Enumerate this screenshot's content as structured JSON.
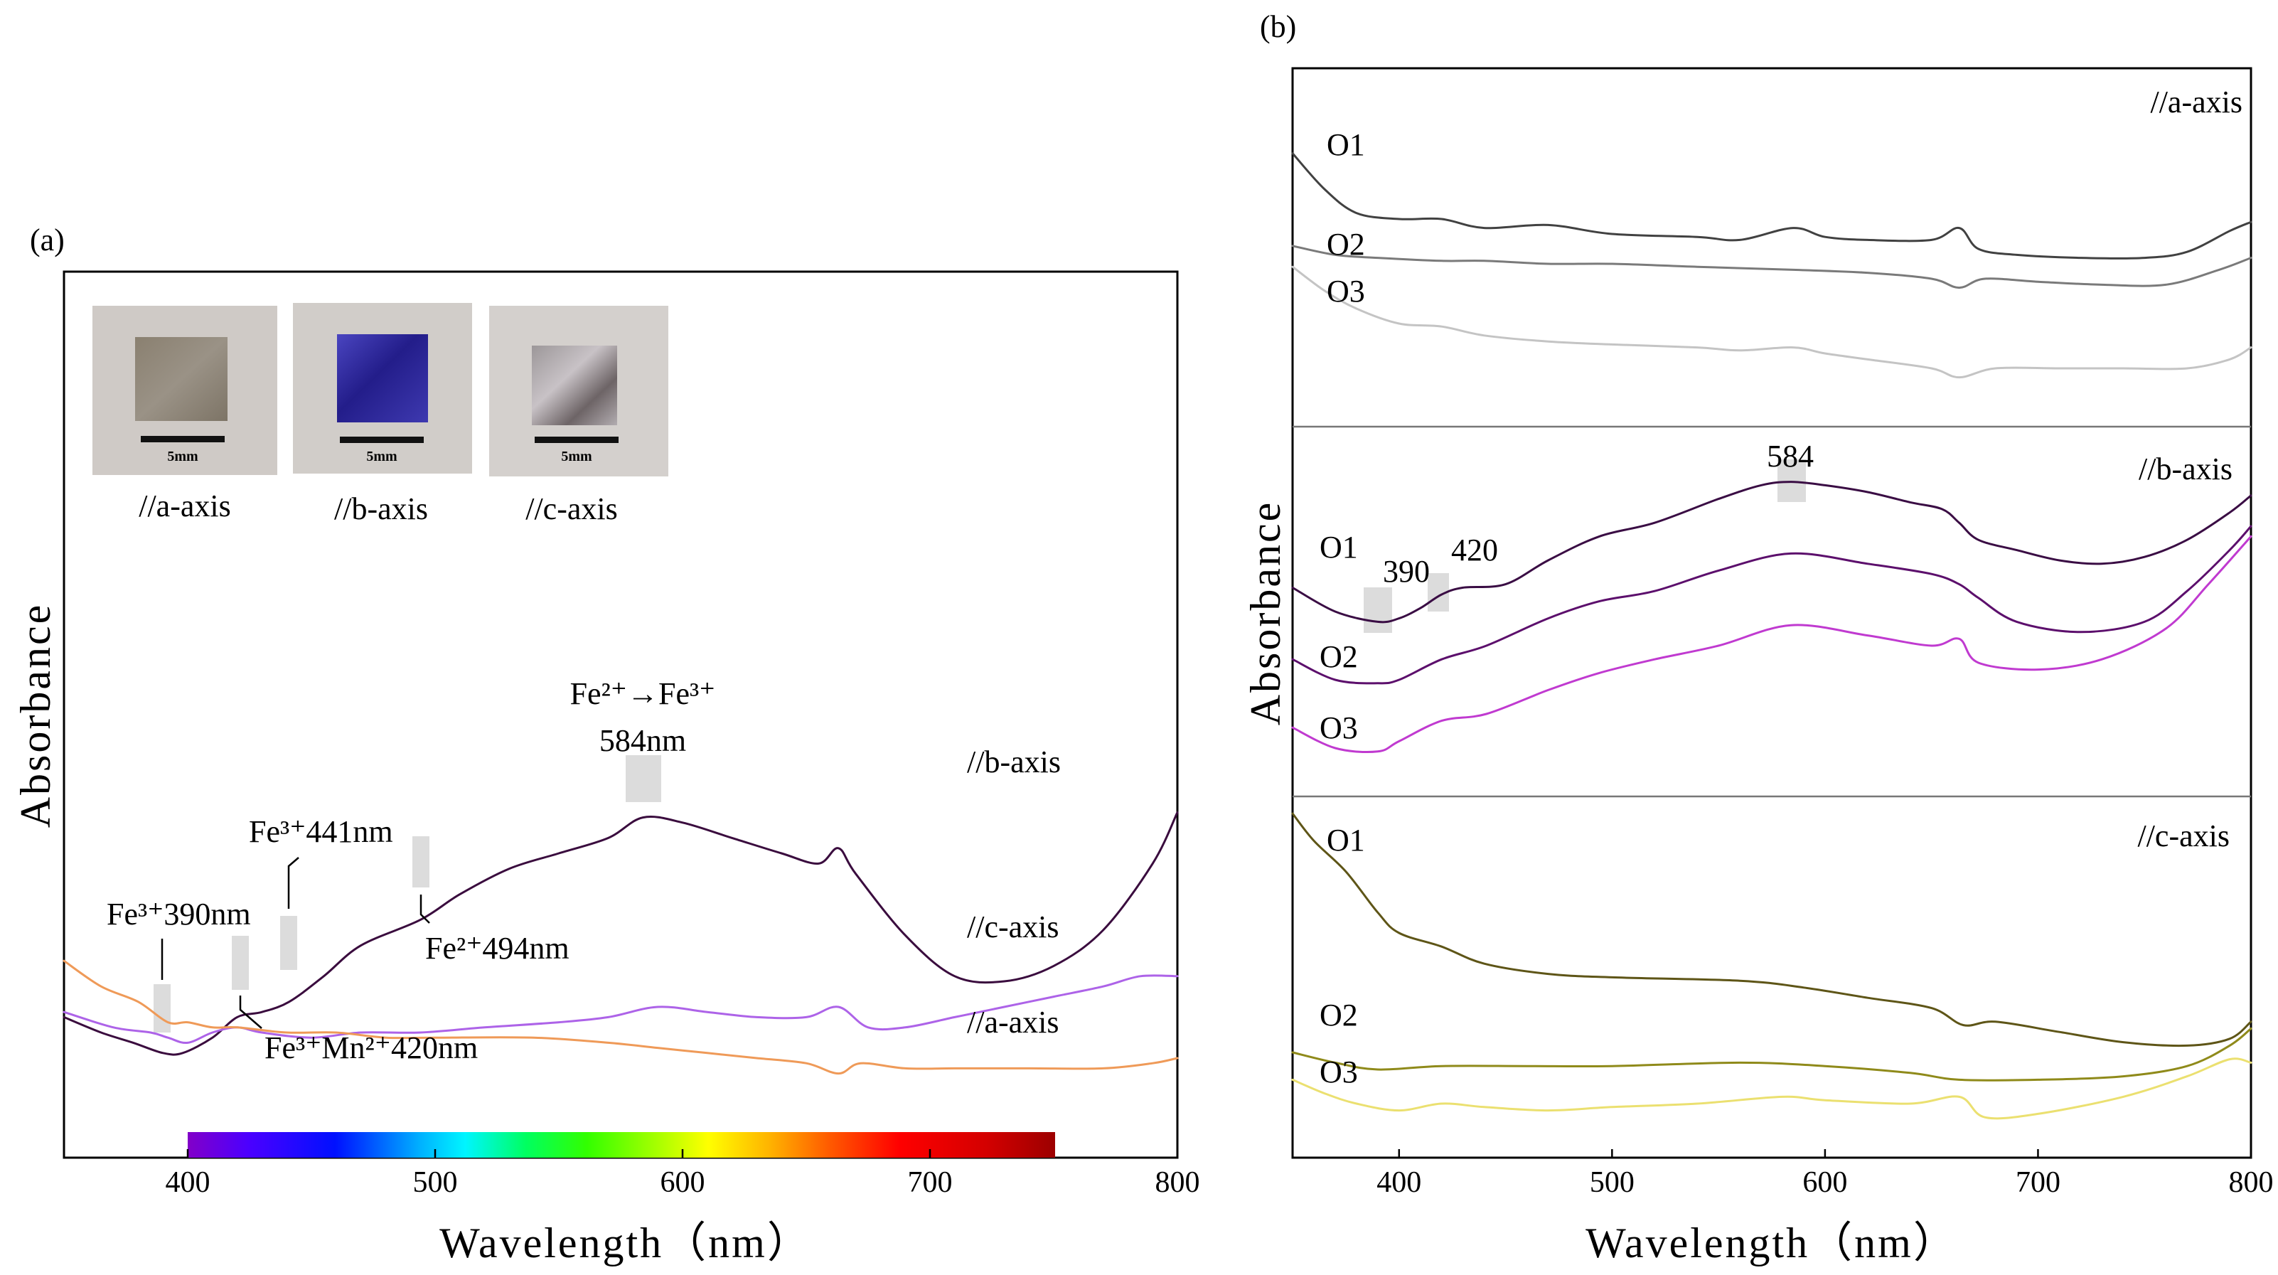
{
  "chart_data": [
    {
      "type": "line",
      "panel_label": "(a)",
      "xlabel": "Wavelength（nm）",
      "ylabel": "Absorbance",
      "xlim": [
        350,
        800
      ],
      "ylim": [
        0,
        1
      ],
      "xticks": [
        "400",
        "500",
        "600",
        "700",
        "800"
      ],
      "yticks": [],
      "spectrum_bar": {
        "range": [
          400,
          750
        ]
      },
      "inset_photos": [
        {
          "caption": "//a-axis",
          "scale_label": "5mm",
          "tint": "#8b8278"
        },
        {
          "caption": "//b-axis",
          "scale_label": "5mm",
          "tint": "#3c37a0"
        },
        {
          "caption": "//c-axis",
          "scale_label": "5mm",
          "tint": "#a49fa3"
        }
      ],
      "annotations": [
        {
          "label": "Fe²⁺→Fe³⁺",
          "x": 584
        },
        {
          "label": "584nm",
          "x": 584
        },
        {
          "label": "Fe³⁺441nm",
          "x": 441
        },
        {
          "label": "Fe³⁺390nm",
          "x": 390
        },
        {
          "label": "Fe²⁺494nm",
          "x": 494
        },
        {
          "label": "Fe³⁺Mn²⁺420nm",
          "x": 420
        }
      ],
      "series": [
        {
          "name": "//b-axis",
          "color": "#3a0c3e",
          "x": [
            350,
            365,
            378,
            390,
            398,
            410,
            420,
            430,
            441,
            455,
            470,
            494,
            510,
            530,
            550,
            570,
            584,
            600,
            620,
            640,
            655,
            663,
            670,
            690,
            710,
            730,
            750,
            770,
            790,
            800
          ],
          "y": [
            0.18,
            0.15,
            0.13,
            0.11,
            0.11,
            0.14,
            0.18,
            0.19,
            0.21,
            0.26,
            0.32,
            0.37,
            0.42,
            0.47,
            0.5,
            0.53,
            0.57,
            0.56,
            0.53,
            0.5,
            0.48,
            0.51,
            0.46,
            0.34,
            0.26,
            0.25,
            0.28,
            0.35,
            0.48,
            0.58
          ]
        },
        {
          "name": "//c-axis",
          "color": "#ad63e8",
          "x": [
            350,
            370,
            385,
            392,
            400,
            410,
            420,
            430,
            450,
            470,
            494,
            520,
            550,
            570,
            590,
            610,
            630,
            650,
            663,
            675,
            690,
            710,
            730,
            750,
            770,
            785,
            800
          ],
          "y": [
            0.19,
            0.16,
            0.15,
            0.14,
            0.13,
            0.15,
            0.16,
            0.15,
            0.14,
            0.15,
            0.15,
            0.16,
            0.17,
            0.18,
            0.2,
            0.19,
            0.18,
            0.18,
            0.2,
            0.16,
            0.16,
            0.18,
            0.2,
            0.22,
            0.24,
            0.26,
            0.26
          ]
        },
        {
          "name": "//a-axis",
          "color": "#ef9a58",
          "x": [
            350,
            365,
            380,
            392,
            400,
            410,
            420,
            440,
            460,
            480,
            500,
            540,
            570,
            590,
            610,
            630,
            650,
            663,
            672,
            690,
            710,
            740,
            770,
            790,
            800
          ],
          "y": [
            0.29,
            0.24,
            0.21,
            0.17,
            0.17,
            0.16,
            0.16,
            0.15,
            0.15,
            0.14,
            0.14,
            0.14,
            0.13,
            0.12,
            0.11,
            0.1,
            0.09,
            0.07,
            0.09,
            0.08,
            0.08,
            0.08,
            0.08,
            0.09,
            0.1
          ]
        }
      ]
    },
    {
      "type": "line",
      "panel_label": "(b)",
      "xlabel": "Wavelength（nm）",
      "ylabel": "Absorbance",
      "xlim": [
        350,
        800
      ],
      "ylim": [
        0,
        1
      ],
      "xticks": [
        "400",
        "500",
        "600",
        "700",
        "800"
      ],
      "yticks": [],
      "subpanels": [
        {
          "title": "//a-axis",
          "peak_labels": [],
          "series": [
            {
              "name": "O1",
              "color": "#414141",
              "x": [
                350,
                365,
                380,
                400,
                420,
                440,
                470,
                500,
                540,
                560,
                585,
                600,
                620,
                650,
                663,
                672,
                690,
                720,
                750,
                770,
                790,
                800
              ],
              "y": [
                0.82,
                0.7,
                0.62,
                0.6,
                0.6,
                0.57,
                0.58,
                0.55,
                0.54,
                0.53,
                0.57,
                0.54,
                0.53,
                0.53,
                0.57,
                0.5,
                0.48,
                0.47,
                0.47,
                0.49,
                0.56,
                0.59
              ]
            },
            {
              "name": "O2",
              "color": "#7a7a7a",
              "x": [
                350,
                370,
                390,
                420,
                440,
                470,
                500,
                540,
                585,
                620,
                650,
                663,
                675,
                700,
                730,
                760,
                785,
                800
              ],
              "y": [
                0.51,
                0.48,
                0.47,
                0.46,
                0.46,
                0.45,
                0.45,
                0.44,
                0.43,
                0.42,
                0.4,
                0.37,
                0.4,
                0.39,
                0.38,
                0.38,
                0.43,
                0.47
              ]
            },
            {
              "name": "O3",
              "color": "#c4c4c4",
              "x": [
                350,
                365,
                380,
                400,
                420,
                440,
                470,
                500,
                540,
                560,
                585,
                600,
                620,
                650,
                663,
                680,
                710,
                740,
                770,
                790,
                800
              ],
              "y": [
                0.44,
                0.36,
                0.3,
                0.25,
                0.24,
                0.21,
                0.19,
                0.18,
                0.17,
                0.16,
                0.17,
                0.15,
                0.13,
                0.1,
                0.07,
                0.1,
                0.1,
                0.1,
                0.1,
                0.13,
                0.17
              ]
            }
          ]
        },
        {
          "title": "//b-axis",
          "peak_labels": [
            {
              "label": "584",
              "x": 584
            },
            {
              "label": "390",
              "x": 390
            },
            {
              "label": "420",
              "x": 420
            }
          ],
          "series": [
            {
              "name": "O1",
              "color": "#3a0d44",
              "x": [
                350,
                370,
                390,
                400,
                410,
                420,
                430,
                450,
                470,
                494,
                520,
                550,
                570,
                584,
                600,
                620,
                640,
                655,
                663,
                672,
                690,
                710,
                730,
                750,
                770,
                790,
                800
              ],
              "y": [
                0.57,
                0.5,
                0.47,
                0.48,
                0.51,
                0.55,
                0.57,
                0.58,
                0.65,
                0.72,
                0.76,
                0.83,
                0.87,
                0.88,
                0.87,
                0.85,
                0.82,
                0.8,
                0.76,
                0.71,
                0.68,
                0.65,
                0.64,
                0.66,
                0.71,
                0.79,
                0.84
              ]
            },
            {
              "name": "O2",
              "color": "#5c0f6c",
              "x": [
                350,
                370,
                390,
                400,
                420,
                441,
                470,
                494,
                520,
                550,
                584,
                620,
                650,
                663,
                672,
                690,
                720,
                750,
                770,
                790,
                800
              ],
              "y": [
                0.36,
                0.3,
                0.29,
                0.3,
                0.36,
                0.4,
                0.48,
                0.53,
                0.56,
                0.62,
                0.67,
                0.64,
                0.61,
                0.58,
                0.54,
                0.47,
                0.44,
                0.47,
                0.56,
                0.68,
                0.75
              ]
            },
            {
              "name": "O3",
              "color": "#c03ad0",
              "x": [
                350,
                370,
                390,
                400,
                420,
                441,
                470,
                494,
                520,
                550,
                584,
                620,
                650,
                663,
                672,
                700,
                730,
                760,
                780,
                800
              ],
              "y": [
                0.16,
                0.1,
                0.09,
                0.12,
                0.18,
                0.2,
                0.27,
                0.32,
                0.36,
                0.4,
                0.46,
                0.43,
                0.4,
                0.42,
                0.35,
                0.33,
                0.36,
                0.45,
                0.58,
                0.72
              ]
            }
          ]
        },
        {
          "title": "//c-axis",
          "peak_labels": [],
          "series": [
            {
              "name": "O1",
              "color": "#5e5517",
              "x": [
                350,
                360,
                375,
                390,
                400,
                420,
                440,
                470,
                500,
                560,
                590,
                620,
                650,
                665,
                680,
                710,
                740,
                770,
                790,
                800
              ],
              "y": [
                0.95,
                0.87,
                0.78,
                0.66,
                0.6,
                0.56,
                0.51,
                0.48,
                0.47,
                0.46,
                0.44,
                0.41,
                0.38,
                0.33,
                0.34,
                0.31,
                0.28,
                0.27,
                0.29,
                0.34
              ]
            },
            {
              "name": "O2",
              "color": "#8f8a1a",
              "x": [
                350,
                370,
                390,
                420,
                460,
                500,
                560,
                600,
                640,
                663,
                700,
                740,
                770,
                790,
                800
              ],
              "y": [
                0.25,
                0.22,
                0.2,
                0.21,
                0.21,
                0.21,
                0.22,
                0.21,
                0.19,
                0.17,
                0.17,
                0.18,
                0.21,
                0.27,
                0.32
              ]
            },
            {
              "name": "O3",
              "color": "#ebe070",
              "x": [
                350,
                365,
                380,
                400,
                420,
                440,
                470,
                500,
                540,
                580,
                600,
                640,
                663,
                675,
                700,
                740,
                770,
                790,
                800
              ],
              "y": [
                0.17,
                0.13,
                0.1,
                0.08,
                0.1,
                0.09,
                0.08,
                0.09,
                0.1,
                0.12,
                0.11,
                0.1,
                0.12,
                0.06,
                0.07,
                0.12,
                0.18,
                0.23,
                0.22
              ]
            }
          ]
        }
      ]
    }
  ]
}
